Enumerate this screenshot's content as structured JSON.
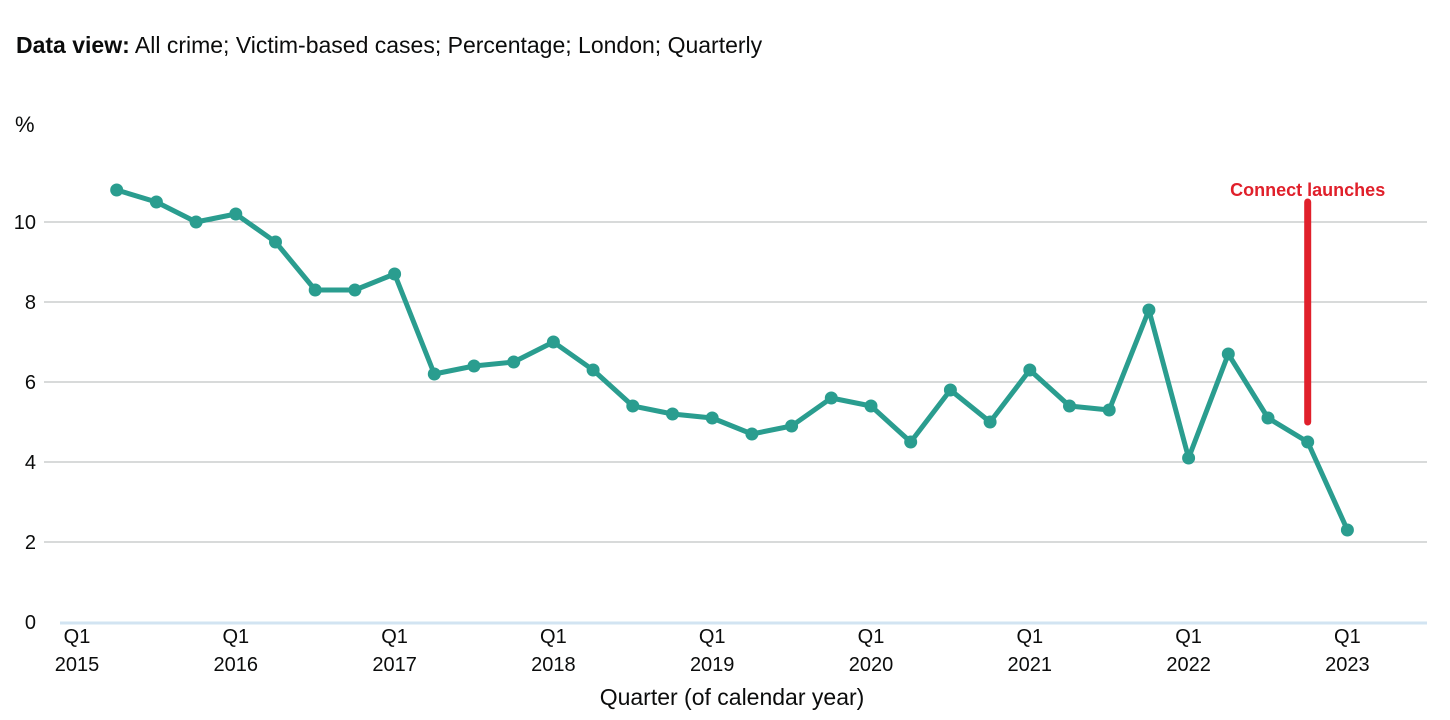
{
  "header": {
    "label": "Data view:",
    "value": "All crime; Victim-based cases; Percentage; London; Quarterly"
  },
  "colors": {
    "series": "#2a9d8f",
    "gridline": "#b1b4b6",
    "annotation": "#e0202b",
    "baseline": "#d2e4f2"
  },
  "chart_data": {
    "type": "line",
    "ylabel": "%",
    "xlabel": "Quarter (of calendar year)",
    "ylim": [
      0,
      11.5
    ],
    "yticks": [
      0,
      2,
      4,
      6,
      8,
      10
    ],
    "grid": true,
    "x_ticks": [
      {
        "quarter": "Q1",
        "year": "2015"
      },
      {
        "quarter": "Q1",
        "year": "2016"
      },
      {
        "quarter": "Q1",
        "year": "2017"
      },
      {
        "quarter": "Q1",
        "year": "2018"
      },
      {
        "quarter": "Q1",
        "year": "2019"
      },
      {
        "quarter": "Q1",
        "year": "2020"
      },
      {
        "quarter": "Q1",
        "year": "2021"
      },
      {
        "quarter": "Q1",
        "year": "2022"
      },
      {
        "quarter": "Q1",
        "year": "2023"
      }
    ],
    "series": [
      {
        "x": [
          "2015 Q2",
          "2015 Q3",
          "2015 Q4",
          "2016 Q1",
          "2016 Q2",
          "2016 Q3",
          "2016 Q4",
          "2017 Q1",
          "2017 Q2",
          "2017 Q3",
          "2017 Q4",
          "2018 Q1",
          "2018 Q2",
          "2018 Q3",
          "2018 Q4",
          "2019 Q1",
          "2019 Q2",
          "2019 Q3",
          "2019 Q4",
          "2020 Q1",
          "2020 Q2",
          "2020 Q3",
          "2020 Q4",
          "2021 Q1",
          "2021 Q2",
          "2021 Q3",
          "2021 Q4",
          "2022 Q1",
          "2022 Q2",
          "2022 Q3",
          "2022 Q4",
          "2023 Q1"
        ],
        "values": [
          10.8,
          10.5,
          10.0,
          10.2,
          9.5,
          8.3,
          8.3,
          8.7,
          6.2,
          6.4,
          6.5,
          7.0,
          6.3,
          5.4,
          5.2,
          5.1,
          4.7,
          4.9,
          5.6,
          5.4,
          4.5,
          5.8,
          5.0,
          6.3,
          5.4,
          5.3,
          7.8,
          4.1,
          6.7,
          5.1,
          4.5,
          2.3
        ]
      }
    ],
    "annotations": [
      {
        "text": "Connect launches",
        "x": "2022 Q4",
        "y_from": 5.0,
        "y_to": 10.5
      }
    ]
  }
}
